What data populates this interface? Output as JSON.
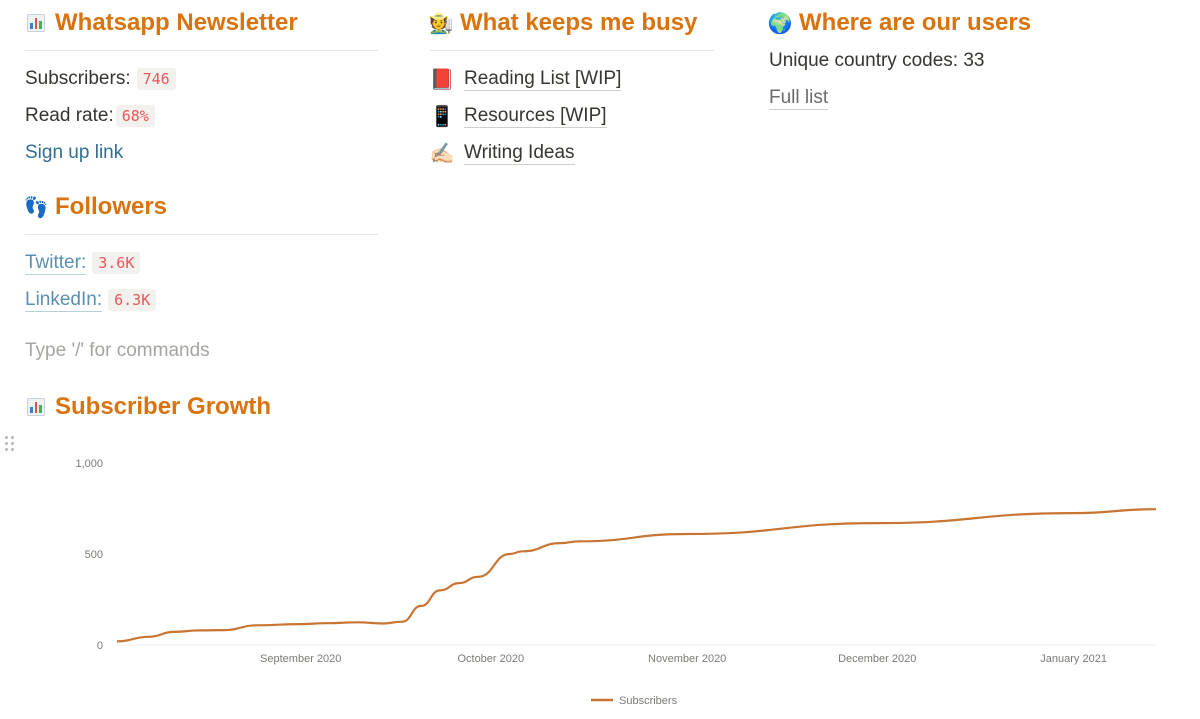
{
  "newsletter": {
    "title": "Whatsapp Newsletter",
    "icon": "bar-chart-icon",
    "subscribers_label": "Subscribers:",
    "subscribers_value": "746",
    "read_rate_label": "Read rate:",
    "read_rate_value": "68%",
    "signup_link": "Sign up link"
  },
  "followers": {
    "title": "Followers",
    "icon": "footprints-icon",
    "twitter_label": "Twitter:",
    "twitter_value": "3.6K",
    "linkedin_label": "LinkedIn:",
    "linkedin_value": "6.3K"
  },
  "editor": {
    "placeholder": "Type '/' for commands"
  },
  "busy": {
    "title": "What keeps me busy",
    "icon": "farmer-icon",
    "items": [
      {
        "label": "Reading List [WIP]",
        "icon": "red-book-icon"
      },
      {
        "label": "Resources [WIP]",
        "icon": "mobile-phone-icon"
      },
      {
        "label": "Writing Ideas",
        "icon": "writing-hand-icon"
      }
    ]
  },
  "users": {
    "title": "Where are our users",
    "icon": "globe-icon",
    "country_codes": "Unique country codes: 33",
    "full_list": "Full list"
  },
  "growth": {
    "title": "Subscriber Growth",
    "icon": "bar-chart-icon"
  },
  "colors": {
    "accent": "#d9730d",
    "line": "#c87533",
    "code": "#eb5757"
  },
  "chart_data": {
    "type": "line",
    "title": "",
    "xlabel": "",
    "ylabel": "",
    "ylim": [
      0,
      1000
    ],
    "y_ticks": [
      "0",
      "500",
      "1,000"
    ],
    "x_ticks": [
      {
        "label": "September 2020",
        "date": "2020-09-01"
      },
      {
        "label": "October 2020",
        "date": "2020-10-01"
      },
      {
        "label": "November 2020",
        "date": "2020-11-01"
      },
      {
        "label": "December 2020",
        "date": "2020-12-01"
      },
      {
        "label": "January 2021",
        "date": "2021-01-01"
      }
    ],
    "grid": false,
    "legend_position": "bottom",
    "series": [
      {
        "name": "Subscribers",
        "points": [
          {
            "x": "2020-08-03",
            "y": 20
          },
          {
            "x": "2020-08-08",
            "y": 45
          },
          {
            "x": "2020-08-12",
            "y": 72
          },
          {
            "x": "2020-08-16",
            "y": 80
          },
          {
            "x": "2020-08-20",
            "y": 82
          },
          {
            "x": "2020-08-25",
            "y": 108
          },
          {
            "x": "2020-09-01",
            "y": 115
          },
          {
            "x": "2020-09-05",
            "y": 120
          },
          {
            "x": "2020-09-10",
            "y": 125
          },
          {
            "x": "2020-09-14",
            "y": 118
          },
          {
            "x": "2020-09-17",
            "y": 128
          },
          {
            "x": "2020-09-20",
            "y": 215
          },
          {
            "x": "2020-09-23",
            "y": 300
          },
          {
            "x": "2020-09-26",
            "y": 340
          },
          {
            "x": "2020-09-29",
            "y": 375
          },
          {
            "x": "2020-10-04",
            "y": 500
          },
          {
            "x": "2020-10-06",
            "y": 515
          },
          {
            "x": "2020-10-12",
            "y": 560
          },
          {
            "x": "2020-10-15",
            "y": 570
          },
          {
            "x": "2020-11-01",
            "y": 610
          },
          {
            "x": "2020-12-01",
            "y": 670
          },
          {
            "x": "2021-01-01",
            "y": 725
          },
          {
            "x": "2021-01-14",
            "y": 746
          }
        ]
      }
    ]
  }
}
